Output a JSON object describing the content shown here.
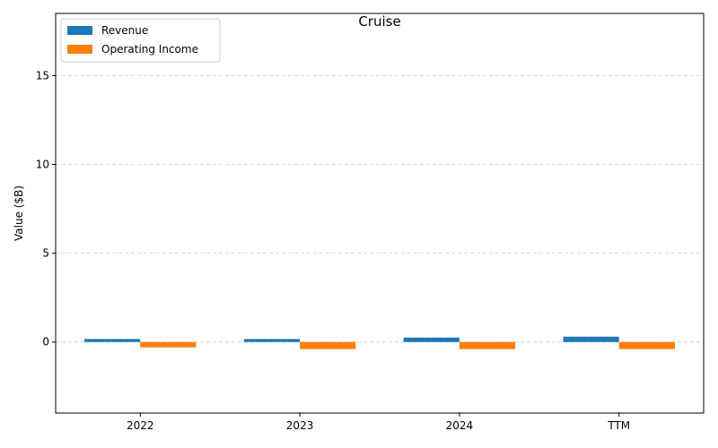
{
  "chart_data": {
    "type": "bar",
    "title": "Cruise",
    "xlabel": "",
    "ylabel": "Value ($B)",
    "categories": [
      "2022",
      "2023",
      "2024",
      "TTM"
    ],
    "series": [
      {
        "name": "Revenue",
        "color": "#1f77b4",
        "values": [
          0.17,
          0.17,
          0.25,
          0.3
        ]
      },
      {
        "name": "Operating Income",
        "color": "#ff7f0e",
        "values": [
          -0.3,
          -0.4,
          -0.4,
          -0.4
        ]
      }
    ],
    "ylim": [
      -4,
      18.5
    ],
    "yticks": [
      0,
      5,
      10,
      15
    ],
    "grid": true,
    "legend_position": "top-left"
  }
}
